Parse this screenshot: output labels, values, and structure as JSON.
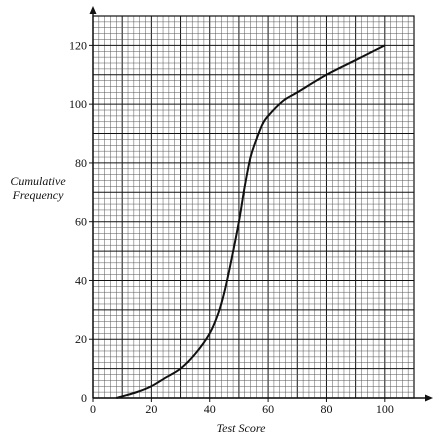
{
  "chart_data": {
    "type": "line",
    "title": "",
    "xlabel": "Test Score",
    "ylabel_lines": [
      "Cumulative",
      "Frequency"
    ],
    "xlim": [
      0,
      110
    ],
    "ylim": [
      0,
      130
    ],
    "x_ticks": [
      0,
      20,
      40,
      60,
      80,
      100
    ],
    "y_ticks": [
      20,
      40,
      60,
      80,
      100,
      120
    ],
    "grid": true,
    "grid_minor_x": 2,
    "grid_minor_y": 2,
    "grid_major_x": 10,
    "grid_major_y": 10,
    "series": [
      {
        "x": [
          8,
          15,
          20,
          25,
          30,
          35,
          40,
          43,
          45,
          47,
          50,
          52,
          54,
          56,
          58,
          60,
          65,
          70,
          80,
          90,
          100
        ],
        "y": [
          0,
          2,
          4,
          7,
          10,
          15,
          22,
          29,
          36,
          45,
          60,
          72,
          82,
          88,
          93,
          96,
          101,
          104,
          110,
          115,
          120
        ]
      }
    ],
    "colors": {
      "line": "#111111",
      "grid_minor": "#555555",
      "grid_major": "#111111",
      "background": "#ffffff"
    }
  }
}
